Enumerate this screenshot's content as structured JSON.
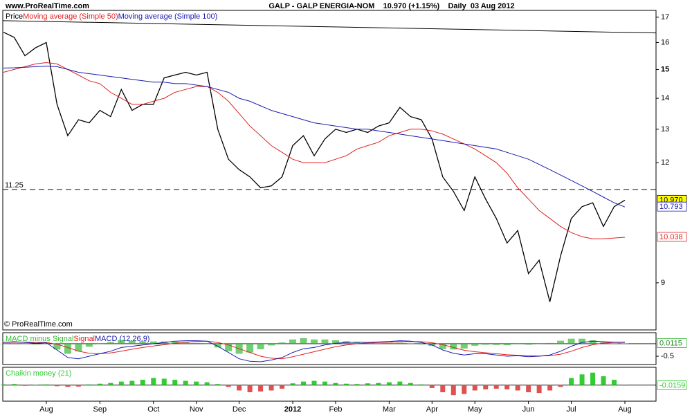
{
  "chart_data": [
    {
      "type": "line",
      "site": "www.ProRealTime.com",
      "title": "GALP - GALP ENERGIA-NOM    10.970 (+1.15%)    Daily  03 Aug 2012",
      "watermark": "© ProRealTime.com",
      "log_scale": true,
      "ylim": [
        8.04,
        17.28
      ],
      "yticks": [
        9,
        12,
        13,
        14,
        15,
        16,
        17
      ],
      "bold_tick": 15,
      "categories": [
        null,
        null,
        null,
        null,
        "Aug",
        null,
        null,
        null,
        null,
        "Sep",
        null,
        null,
        null,
        null,
        "Oct",
        null,
        null,
        null,
        "Nov",
        null,
        null,
        null,
        "Dec",
        null,
        null,
        null,
        null,
        "2012",
        null,
        null,
        null,
        "Feb",
        null,
        null,
        null,
        null,
        "Mar",
        null,
        null,
        null,
        "Apr",
        null,
        null,
        null,
        "May",
        null,
        null,
        null,
        null,
        "Jun",
        null,
        null,
        null,
        "Jul",
        null,
        null,
        null,
        null,
        "Aug"
      ],
      "bold_category": "2012",
      "hline": {
        "value": 11.25,
        "label": "11.25"
      },
      "trendline": {
        "color": "#000000",
        "values": [
          16.86,
          16.37
        ]
      },
      "series": [
        {
          "name": "Price",
          "color": "#000000",
          "last_label": "10.970",
          "label_bg": "#ffff00",
          "values": [
            16.4,
            16.2,
            15.5,
            15.8,
            16.0,
            13.8,
            12.8,
            13.3,
            13.2,
            13.6,
            13.4,
            14.3,
            13.6,
            13.8,
            13.8,
            14.7,
            14.8,
            14.9,
            14.8,
            14.9,
            13.0,
            12.1,
            11.8,
            11.6,
            11.3,
            11.35,
            11.6,
            12.5,
            12.8,
            12.2,
            12.7,
            13.0,
            12.9,
            13.0,
            12.9,
            13.1,
            13.2,
            13.7,
            13.4,
            13.3,
            12.7,
            11.6,
            11.2,
            10.7,
            11.6,
            11.0,
            10.5,
            9.9,
            10.2,
            9.2,
            9.5,
            8.6,
            9.6,
            10.5,
            10.8,
            10.9,
            10.3,
            10.8,
            10.97
          ]
        },
        {
          "name": "Moving average (Simple 50)",
          "color": "#e02020",
          "last_label": "10.038",
          "label_bg": "#ffffff",
          "values": [
            14.9,
            15.0,
            15.1,
            15.2,
            15.25,
            15.2,
            15.0,
            14.8,
            14.6,
            14.5,
            14.2,
            14.0,
            13.8,
            13.8,
            13.9,
            14.0,
            14.2,
            14.3,
            14.4,
            14.4,
            14.2,
            13.9,
            13.5,
            13.1,
            12.8,
            12.5,
            12.3,
            12.1,
            12.0,
            12.0,
            12.0,
            12.1,
            12.2,
            12.4,
            12.5,
            12.6,
            12.8,
            12.9,
            13.0,
            13.0,
            12.95,
            12.85,
            12.7,
            12.55,
            12.4,
            12.2,
            12.0,
            11.7,
            11.3,
            11.0,
            10.7,
            10.5,
            10.3,
            10.15,
            10.05,
            10.0,
            10.0,
            10.02,
            10.038
          ]
        },
        {
          "name": "Moving average (Simple 100)",
          "color": "#1a1ab0",
          "last_label": "10.793",
          "label_bg": "#ffffff",
          "values": [
            15.05,
            15.06,
            15.08,
            15.1,
            15.12,
            15.1,
            15.0,
            14.9,
            14.85,
            14.8,
            14.75,
            14.7,
            14.65,
            14.6,
            14.55,
            14.55,
            14.5,
            14.5,
            14.45,
            14.4,
            14.3,
            14.2,
            14.0,
            13.9,
            13.75,
            13.6,
            13.5,
            13.4,
            13.3,
            13.2,
            13.15,
            13.1,
            13.05,
            13.0,
            13.0,
            12.95,
            12.9,
            12.85,
            12.8,
            12.75,
            12.7,
            12.65,
            12.6,
            12.55,
            12.5,
            12.45,
            12.4,
            12.3,
            12.2,
            12.1,
            11.95,
            11.8,
            11.65,
            11.5,
            11.35,
            11.2,
            11.05,
            10.9,
            10.793
          ]
        }
      ]
    },
    {
      "type": "line",
      "ylim": [
        -0.83,
        0.44
      ],
      "yticks": [
        -0.5
      ],
      "series": [
        {
          "name": "MACD minus Signal",
          "color": "#33bb33",
          "style": "bar",
          "last_label": "0.0115",
          "label_bg": "#ffffff",
          "values": [
            0,
            0.02,
            -0.01,
            -0.03,
            -0.01,
            -0.23,
            -0.4,
            -0.3,
            -0.12,
            0,
            0.07,
            0.15,
            0.12,
            0.1,
            0.09,
            0.09,
            0.08,
            0.06,
            0.03,
            0,
            -0.15,
            -0.3,
            -0.4,
            -0.35,
            -0.22,
            -0.07,
            0.05,
            0.17,
            0.22,
            0.17,
            0.17,
            0.14,
            0.1,
            0.06,
            0.02,
            0.02,
            0.03,
            0.04,
            0.01,
            -0.03,
            -0.09,
            -0.21,
            -0.23,
            -0.19,
            -0.08,
            -0.04,
            -0.05,
            -0.06,
            -0.02,
            -0.04,
            -0.01,
            0.03,
            0.12,
            0.2,
            0.2,
            0.14,
            0.05,
            0.01,
            0.0115
          ]
        },
        {
          "name": "Signal",
          "color": "#e02020",
          "style": "line",
          "values": [
            0.05,
            0.06,
            0.06,
            0.05,
            0.05,
            -0.02,
            -0.15,
            -0.3,
            -0.38,
            -0.4,
            -0.37,
            -0.3,
            -0.22,
            -0.15,
            -0.09,
            -0.04,
            0.02,
            0.06,
            0.09,
            0.1,
            0.05,
            -0.05,
            -0.2,
            -0.35,
            -0.5,
            -0.58,
            -0.6,
            -0.52,
            -0.42,
            -0.32,
            -0.22,
            -0.12,
            -0.05,
            0.0,
            0.03,
            0.05,
            0.06,
            0.08,
            0.09,
            0.08,
            0.04,
            -0.04,
            -0.15,
            -0.26,
            -0.32,
            -0.36,
            -0.4,
            -0.44,
            -0.46,
            -0.48,
            -0.49,
            -0.48,
            -0.42,
            -0.3,
            -0.15,
            -0.04,
            0.03,
            0.05,
            0.05
          ]
        },
        {
          "name": "MACD (12,26,9)",
          "color": "#1a1ab0",
          "style": "line",
          "values": [
            0.05,
            0.08,
            0.05,
            0.02,
            0.04,
            -0.25,
            -0.55,
            -0.6,
            -0.5,
            -0.4,
            -0.3,
            -0.15,
            -0.1,
            -0.05,
            0.0,
            0.05,
            0.1,
            0.12,
            0.12,
            0.1,
            -0.1,
            -0.35,
            -0.6,
            -0.7,
            -0.72,
            -0.65,
            -0.55,
            -0.35,
            -0.2,
            -0.15,
            -0.05,
            0.02,
            0.05,
            0.06,
            0.05,
            0.07,
            0.09,
            0.12,
            0.1,
            0.05,
            -0.05,
            -0.25,
            -0.38,
            -0.45,
            -0.4,
            -0.4,
            -0.45,
            -0.5,
            -0.48,
            -0.52,
            -0.5,
            -0.45,
            -0.3,
            -0.1,
            0.05,
            0.1,
            0.08,
            0.06,
            0.06
          ]
        }
      ]
    },
    {
      "type": "bar",
      "ylim": [
        -0.45,
        0.5
      ],
      "series": [
        {
          "name": "Chaikin money (21)",
          "color": "#33cc33",
          "negative_color": "#e05050",
          "last_label": "-0.0159",
          "label_bg": "#ffffff",
          "values": [
            0.02,
            0.03,
            -0.02,
            0.01,
            0.02,
            -0.03,
            -0.05,
            -0.04,
            0.02,
            0.04,
            0.06,
            0.1,
            0.12,
            0.15,
            0.2,
            0.18,
            0.15,
            0.12,
            0.1,
            0.08,
            0.03,
            -0.05,
            -0.15,
            -0.2,
            -0.18,
            -0.15,
            -0.1,
            0.05,
            0.1,
            0.12,
            0.1,
            0.06,
            0.04,
            0.03,
            0.05,
            0.06,
            0.08,
            0.1,
            0.06,
            0.02,
            -0.08,
            -0.2,
            -0.28,
            -0.25,
            -0.15,
            -0.12,
            -0.1,
            -0.12,
            -0.15,
            -0.2,
            -0.22,
            -0.15,
            -0.05,
            0.2,
            0.3,
            0.35,
            0.25,
            0.15,
            -0.0159
          ]
        }
      ]
    }
  ]
}
